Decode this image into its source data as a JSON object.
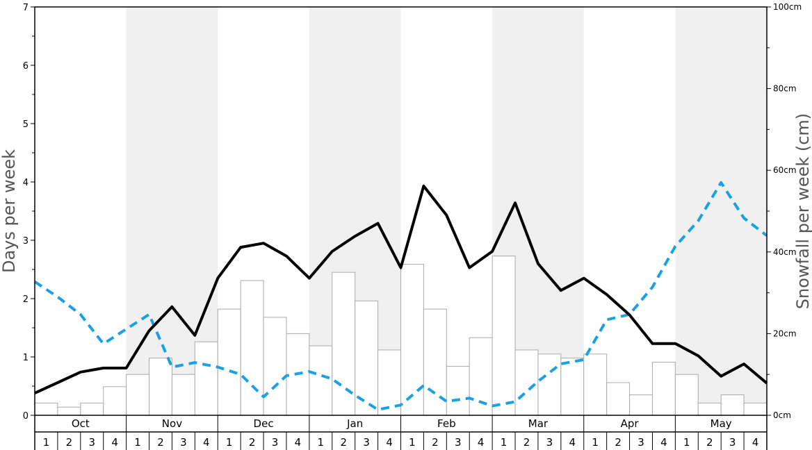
{
  "chart_data": {
    "type": "bar+line",
    "y_left_label": "Days per week",
    "y_right_label": "Snowfall per week (cm)",
    "y_left_range": [
      0,
      7
    ],
    "y_left_ticks": [
      "0",
      "1",
      "2",
      "3",
      "4",
      "5",
      "6",
      "7"
    ],
    "y_right_range": [
      0,
      100
    ],
    "y_right_ticks": [
      "0cm",
      "20cm",
      "40cm",
      "60cm",
      "80cm",
      "100cm"
    ],
    "months": [
      "Oct",
      "Nov",
      "Dec",
      "Jan",
      "Feb",
      "Mar",
      "Apr",
      "May"
    ],
    "weeks": [
      "1",
      "2",
      "3",
      "4"
    ],
    "colors": {
      "bars_fill": "#ffffff",
      "bars_stroke": "#aaaaaa",
      "shade": "#f0f0f0",
      "solid_line": "#000000",
      "dashed_line": "#1aa0e6"
    },
    "bars_days": [
      0.21,
      0.14,
      0.21,
      0.49,
      0.7,
      0.98,
      0.7,
      1.26,
      1.82,
      2.31,
      1.68,
      1.4,
      1.19,
      2.45,
      1.96,
      1.12,
      2.59,
      1.82,
      0.84,
      1.33,
      2.73,
      1.12,
      1.05,
      0.98,
      1.05,
      0.56,
      0.35,
      0.91,
      0.7,
      0.21,
      0.35,
      0.21
    ],
    "solid_line_days": [
      0.38,
      0.56,
      0.74,
      0.81,
      0.81,
      1.45,
      1.86,
      1.37,
      2.35,
      2.88,
      2.95,
      2.73,
      2.35,
      2.81,
      3.07,
      3.29,
      2.53,
      3.93,
      3.43,
      2.53,
      2.81,
      3.64,
      2.6,
      2.14,
      2.35,
      2.07,
      1.72,
      1.23,
      1.23,
      1.02,
      0.67,
      0.88,
      0.55
    ],
    "dashed_line_cm": [
      32.7,
      29.0,
      24.7,
      17.5,
      21.1,
      24.7,
      11.8,
      12.9,
      11.8,
      10.0,
      4.5,
      9.7,
      10.7,
      8.9,
      4.9,
      1.4,
      2.5,
      7.3,
      3.4,
      4.2,
      2.3,
      3.3,
      8.3,
      12.6,
      13.6,
      23.4,
      24.7,
      31.4,
      41.4,
      47.6,
      57.0,
      48.3,
      44.0
    ]
  }
}
